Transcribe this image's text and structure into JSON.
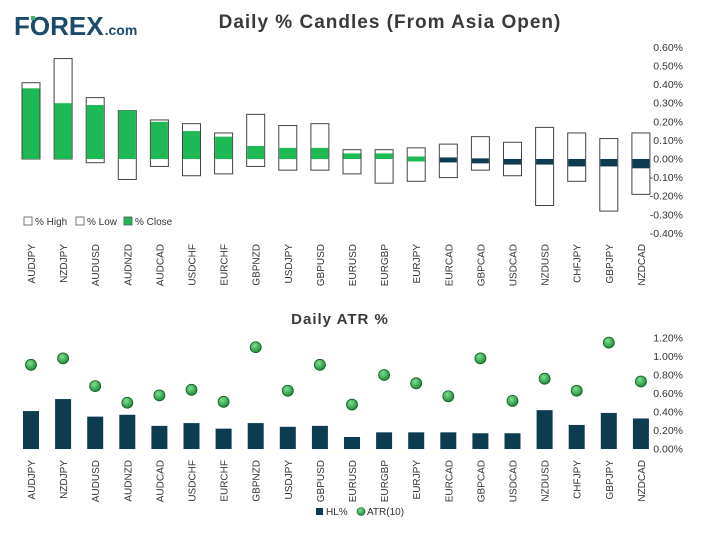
{
  "brand": {
    "name_prefix": "F",
    "name_o": "O",
    "name_rest": "REX",
    "name_suffix": ".com",
    "color": "#1b4a6b",
    "accent": "#34b86b"
  },
  "chart_data": [
    {
      "type": "candlestick",
      "title": "Daily % Candles (From Asia Open)",
      "categories": [
        "AUDJPY",
        "NZDJPY",
        "AUDUSD",
        "AUDNZD",
        "AUDCAD",
        "USDCHF",
        "EURCHF",
        "GBPNZD",
        "USDJPY",
        "GBPUSD",
        "EURUSD",
        "EURGBP",
        "EURJPY",
        "EURCAD",
        "GBPCAD",
        "USDCAD",
        "NZDUSD",
        "CHFJPY",
        "GBPJPY",
        "NZDCAD"
      ],
      "series": [
        {
          "name": "% High",
          "values": [
            0.41,
            0.54,
            0.33,
            0.26,
            0.21,
            0.19,
            0.14,
            0.24,
            0.18,
            0.19,
            0.05,
            0.05,
            0.06,
            0.08,
            0.12,
            0.09,
            0.17,
            0.14,
            0.11,
            0.14
          ]
        },
        {
          "name": "% Low",
          "values": [
            0.0,
            0.0,
            -0.02,
            -0.11,
            -0.04,
            -0.09,
            -0.08,
            -0.04,
            -0.06,
            -0.06,
            -0.08,
            -0.13,
            -0.12,
            -0.1,
            -0.06,
            -0.09,
            -0.25,
            -0.12,
            -0.28,
            -0.19
          ]
        },
        {
          "name": "% Close",
          "values": [
            0.38,
            0.3,
            0.29,
            0.26,
            0.2,
            0.15,
            0.12,
            0.07,
            0.06,
            0.06,
            0.03,
            0.03,
            0.0,
            -0.01,
            -0.02,
            -0.03,
            -0.03,
            -0.04,
            -0.04,
            -0.05
          ]
        }
      ],
      "yticks": [
        "0.60%",
        "0.50%",
        "0.40%",
        "0.30%",
        "0.20%",
        "0.10%",
        "0.00%",
        "-0.10%",
        "-0.20%",
        "-0.30%",
        "-0.40%"
      ],
      "ylim": [
        -0.4,
        0.6
      ],
      "legend": [
        "% High",
        "% Low",
        "% Close"
      ],
      "legend_position": "bottom-left",
      "colors": {
        "up": "#1db954",
        "down": "#0d3b4f",
        "box": "#ffffff",
        "outline": "#444444"
      }
    },
    {
      "type": "bar+scatter",
      "title": "Daily ATR %",
      "categories": [
        "AUDJPY",
        "NZDJPY",
        "AUDUSD",
        "AUDNZD",
        "AUDCAD",
        "USDCHF",
        "EURCHF",
        "GBPNZD",
        "USDJPY",
        "GBPUSD",
        "EURUSD",
        "EURGBP",
        "EURJPY",
        "EURCAD",
        "GBPCAD",
        "USDCAD",
        "NZDUSD",
        "CHFJPY",
        "GBPJPY",
        "NZDCAD"
      ],
      "series": [
        {
          "name": "HL%",
          "type": "bar",
          "values": [
            0.41,
            0.54,
            0.35,
            0.37,
            0.25,
            0.28,
            0.22,
            0.28,
            0.24,
            0.25,
            0.13,
            0.18,
            0.18,
            0.18,
            0.17,
            0.17,
            0.42,
            0.26,
            0.39,
            0.33
          ]
        },
        {
          "name": "ATR(10)",
          "type": "scatter",
          "values": [
            0.91,
            0.98,
            0.68,
            0.5,
            0.58,
            0.64,
            0.51,
            1.1,
            0.63,
            0.91,
            0.48,
            0.8,
            0.71,
            0.57,
            0.98,
            0.52,
            0.76,
            0.63,
            1.15,
            0.73
          ]
        }
      ],
      "yticks": [
        "1.20%",
        "1.00%",
        "0.80%",
        "0.60%",
        "0.40%",
        "0.20%",
        "0.00%"
      ],
      "ylim": [
        0,
        1.2
      ],
      "legend": [
        "HL%",
        "ATR(10)"
      ],
      "legend_position": "bottom-center",
      "colors": {
        "bar": "#0d3b4f",
        "dot": "#1e8a3a"
      }
    }
  ]
}
